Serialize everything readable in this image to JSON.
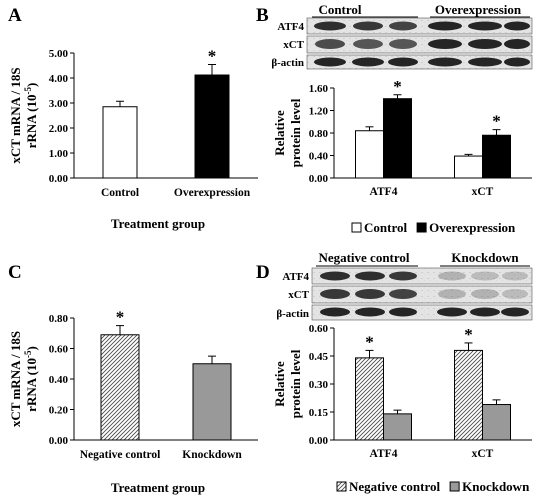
{
  "panels": {
    "A": "A",
    "B": "B",
    "C": "C",
    "D": "D"
  },
  "chart_data": [
    {
      "panel": "A",
      "type": "bar",
      "categories": [
        "Control",
        "Overexpression"
      ],
      "values": [
        2.85,
        4.12
      ],
      "errors": [
        0.22,
        0.42
      ],
      "significant": [
        false,
        true
      ],
      "significance_marker": "*",
      "fills": [
        "white",
        "black"
      ],
      "ylabel_line1": "xCT  mRNA / 18S",
      "ylabel_line2": "rRNA (10",
      "ylabel_exp": "-5",
      "ylabel_close": ")",
      "xlabel": "Treatment group",
      "ylim": [
        0,
        5
      ],
      "yticks": [
        "0.00",
        "1.00",
        "2.00",
        "3.00",
        "4.00",
        "5.00"
      ],
      "grid": false
    },
    {
      "panel": "B",
      "type": "bar",
      "categories": [
        "ATF4",
        "xCT"
      ],
      "series": [
        {
          "name": "Control",
          "values": [
            0.84,
            0.39
          ],
          "errors": [
            0.07,
            0.03
          ],
          "significant": [
            false,
            false
          ]
        },
        {
          "name": "Overexpression",
          "values": [
            1.41,
            0.76
          ],
          "errors": [
            0.07,
            0.1
          ],
          "significant": [
            true,
            true
          ]
        }
      ],
      "significance_marker": "*",
      "ylabel_line1": "Relative",
      "ylabel_line2": "protein level",
      "ylim": [
        0,
        1.6
      ],
      "yticks": [
        "0.00",
        "0.40",
        "0.80",
        "1.20",
        "1.60"
      ],
      "legend_position": "bottom",
      "blot": {
        "groups": [
          "Control",
          "Overexpression"
        ],
        "rows": [
          "ATF4",
          "xCT",
          "β-actin"
        ]
      },
      "grid": false
    },
    {
      "panel": "C",
      "type": "bar",
      "categories": [
        "Negative control",
        "Knockdown"
      ],
      "values": [
        0.69,
        0.5
      ],
      "errors": [
        0.06,
        0.05
      ],
      "significant": [
        true,
        false
      ],
      "significance_marker": "*",
      "fills": [
        "hatched",
        "gray"
      ],
      "ylabel_line1": "xCT  mRNA / 18S",
      "ylabel_line2": "rRNA (10",
      "ylabel_exp": "-5",
      "ylabel_close": ")",
      "xlabel": "Treatment group",
      "ylim": [
        0,
        0.8
      ],
      "yticks": [
        "0.00",
        "0.20",
        "0.40",
        "0.60",
        "0.80"
      ],
      "grid": false
    },
    {
      "panel": "D",
      "type": "bar",
      "categories": [
        "ATF4",
        "xCT"
      ],
      "series": [
        {
          "name": "Negative control",
          "values": [
            0.44,
            0.48
          ],
          "errors": [
            0.04,
            0.04
          ],
          "significant": [
            true,
            true
          ]
        },
        {
          "name": "Knockdown",
          "values": [
            0.14,
            0.19
          ],
          "errors": [
            0.02,
            0.025
          ],
          "significant": [
            false,
            false
          ]
        }
      ],
      "significance_marker": "*",
      "ylabel_line1": "Relative",
      "ylabel_line2": "protein level",
      "ylim": [
        0,
        0.6
      ],
      "yticks": [
        "0.00",
        "0.15",
        "0.30",
        "0.45",
        "0.60"
      ],
      "legend_position": "bottom",
      "blot": {
        "groups": [
          "Negative control",
          "Knockdown"
        ],
        "rows": [
          "ATF4",
          "xCT",
          "β-actin"
        ]
      },
      "grid": false
    }
  ]
}
